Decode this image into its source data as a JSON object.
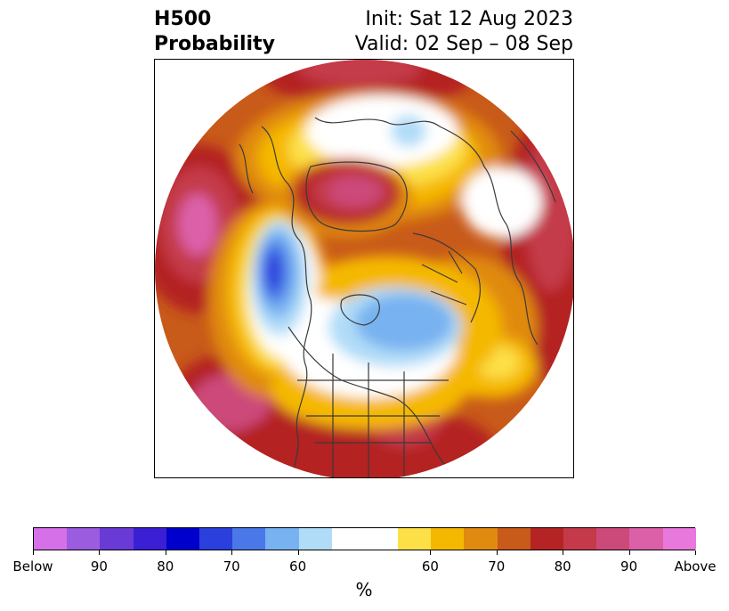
{
  "title": {
    "left_line1": "H500",
    "left_line2": "Probability",
    "right_line1": "Init: Sat 12 Aug 2023",
    "right_line2": "Valid: 02 Sep – 08 Sep"
  },
  "colorbar": {
    "colors": [
      "#d670e8",
      "#9b5ce0",
      "#6a3ad6",
      "#3a1fd4",
      "#0000cc",
      "#2a3fdc",
      "#4a78e8",
      "#78b2f0",
      "#b0dcf8",
      "#ffffff",
      "#ffffff",
      "#fde047",
      "#f5b800",
      "#e08a10",
      "#c85a1a",
      "#b42424",
      "#c43a4a",
      "#cc4a7a",
      "#dc60a8",
      "#e878dc"
    ],
    "tick_labels": [
      "Below",
      "90",
      "80",
      "70",
      "60",
      "60",
      "70",
      "80",
      "90",
      "Above"
    ],
    "unit_label": "%"
  },
  "map": {
    "projection": "north-polar-stereographic",
    "variable": "500 hPa height anomaly probability",
    "colors": {
      "above_90": "#dc60a8",
      "above_80": "#c43a4a",
      "above_75": "#b42424",
      "above_70": "#c85a1a",
      "above_65": "#e08a10",
      "above_60": "#f5b800",
      "above_55": "#fde047",
      "neutral": "#ffffff",
      "below_55": "#b0dcf8",
      "below_60": "#78b2f0",
      "below_65": "#4a78e8",
      "below_70": "#2a3fdc",
      "coastline": "#3a3a3a"
    }
  }
}
